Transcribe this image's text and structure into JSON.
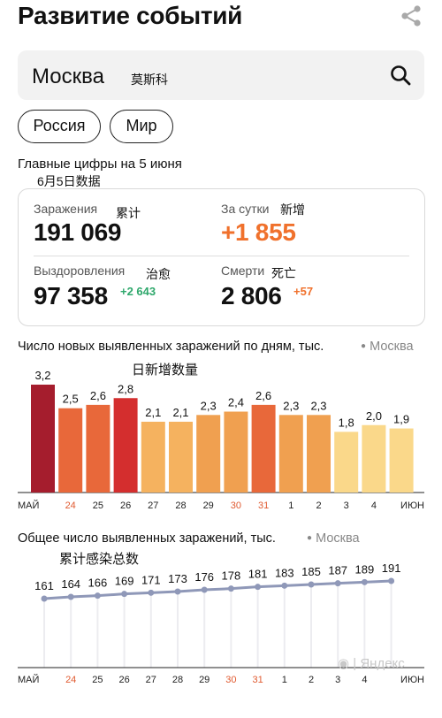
{
  "header": {
    "title": "Развитие событий",
    "share_icon": "share-icon"
  },
  "search": {
    "value": "Москва",
    "note": "莫斯科",
    "icon": "search-icon"
  },
  "chips": [
    "Россия",
    "Мир"
  ],
  "main": {
    "header": "Главные цифры на 5 июня",
    "note": "6月5日数据",
    "stats": {
      "infected_label": "Заражения",
      "infected_note": "累计",
      "infected_value": "191 069",
      "daily_label": "За сутки",
      "daily_note": "新增",
      "daily_value": "+1 855",
      "recovered_label": "Выздоровления",
      "recovered_note": "治愈",
      "recovered_value": "97 358",
      "recovered_delta": "+2 643",
      "deaths_label": "Смерти",
      "deaths_note": "死亡",
      "deaths_value": "2 806",
      "deaths_delta": "+57"
    },
    "colors": {
      "orange": "#f0712c",
      "green": "#2fa86c"
    }
  },
  "chart_data": [
    {
      "type": "bar",
      "title": "Число новых выявленных заражений по дням, тыс.",
      "source": "Москва",
      "note": "日新增数量",
      "categories": [
        "МАЙ",
        "24",
        "25",
        "26",
        "27",
        "28",
        "29",
        "30",
        "31",
        "1",
        "2",
        "3",
        "4",
        "ИЮН"
      ],
      "values": [
        3.2,
        2.5,
        2.6,
        2.8,
        2.1,
        2.1,
        2.3,
        2.4,
        2.6,
        2.3,
        2.3,
        1.8,
        2.0,
        1.9
      ],
      "value_labels": [
        "3,2",
        "2,5",
        "2,6",
        "2,8",
        "2,1",
        "2,1",
        "2,3",
        "2,4",
        "2,6",
        "2,3",
        "2,3",
        "1,8",
        "2,0",
        "1,9"
      ],
      "colors": [
        "#a51d2d",
        "#e8683a",
        "#e8683a",
        "#d42e2e",
        "#f5b25f",
        "#f5b25f",
        "#f0a050",
        "#f0a050",
        "#e8683a",
        "#f0a050",
        "#f0a050",
        "#fad88a",
        "#fad88a",
        "#fad88a"
      ],
      "weekend_ticks": [
        "24",
        "30",
        "31"
      ],
      "weekend_color": "#e05a30",
      "ylim": [
        0,
        3.5
      ]
    },
    {
      "type": "line",
      "title": "Общее число выявленных заражений, тыс.",
      "source": "Москва",
      "note": "累计感染总数",
      "categories": [
        "МАЙ",
        "24",
        "25",
        "26",
        "27",
        "28",
        "29",
        "30",
        "31",
        "1",
        "2",
        "3",
        "4",
        "ИЮН"
      ],
      "values": [
        161,
        164,
        166,
        169,
        171,
        173,
        176,
        178,
        181,
        183,
        185,
        187,
        189,
        191
      ],
      "line_color": "#8f98b8",
      "grid_color": "#ececf0",
      "weekend_ticks": [
        "24",
        "30",
        "31"
      ],
      "weekend_color": "#e05a30"
    }
  ],
  "watermark": "Яндекс"
}
